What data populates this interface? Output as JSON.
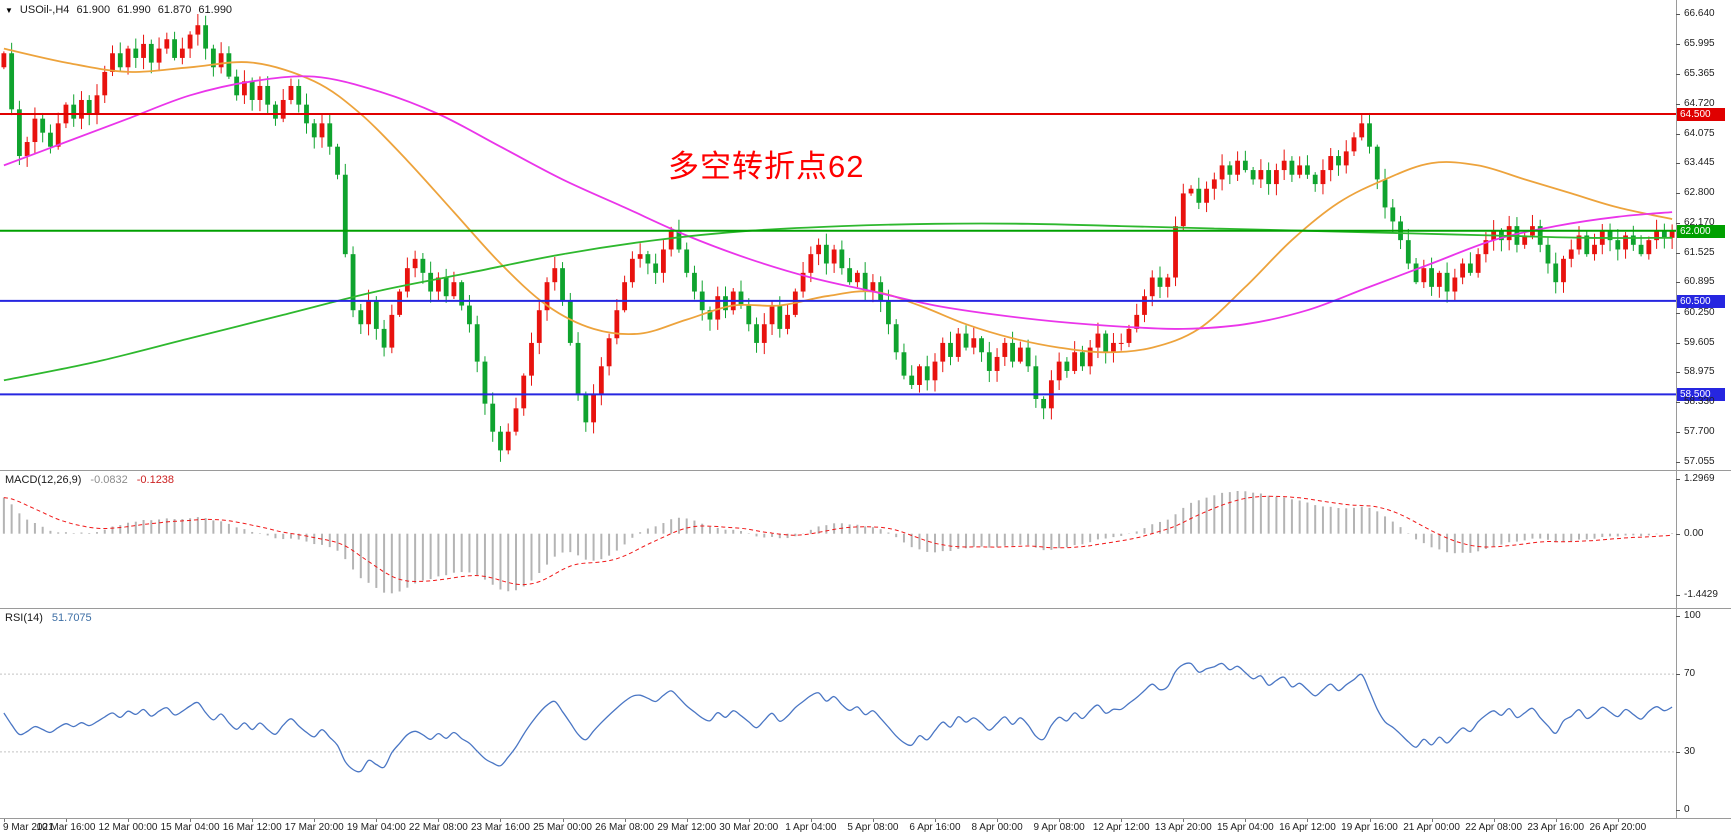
{
  "header": {
    "collapse_icon": "▼",
    "symbol_period": "USOil-,H4",
    "open": "61.900",
    "high": "61.990",
    "low": "61.870",
    "close": "61.990"
  },
  "annotation": {
    "text": "多空转折点62",
    "color": "#ff0000"
  },
  "macd_label": {
    "name": "MACD(12,26,9)",
    "value": "-0.0832",
    "signal": "-0.1238"
  },
  "rsi_label": {
    "name": "RSI(14)",
    "value": "51.7075"
  },
  "price_axis": {
    "ticks": [
      "66.640",
      "65.995",
      "65.365",
      "64.720",
      "64.075",
      "63.445",
      "62.800",
      "62.170",
      "61.525",
      "60.895",
      "60.250",
      "59.605",
      "58.975",
      "58.330",
      "57.700",
      "57.055"
    ]
  },
  "macd_axis": [
    "1.2969",
    "0.00",
    "-1.4429"
  ],
  "rsi_axis": [
    "100",
    "70",
    "30",
    "0"
  ],
  "time_axis": {
    "labels": [
      "9 Mar 2021",
      "10 Mar 16:00",
      "12 Mar 00:00",
      "15 Mar 04:00",
      "16 Mar 12:00",
      "17 Mar 20:00",
      "19 Mar 04:00",
      "22 Mar 08:00",
      "23 Mar 16:00",
      "25 Mar 00:00",
      "26 Mar 08:00",
      "29 Mar 12:00",
      "30 Mar 20:00",
      "1 Apr 04:00",
      "5 Apr 08:00",
      "6 Apr 16:00",
      "8 Apr 00:00",
      "9 Apr 08:00",
      "12 Apr 12:00",
      "13 Apr 20:00",
      "15 Apr 04:00",
      "16 Apr 12:00",
      "19 Apr 16:00",
      "21 Apr 00:00",
      "22 Apr 08:00",
      "23 Apr 16:00",
      "26 Apr 20:00"
    ],
    "bars_per_label": 8
  },
  "chart_data": {
    "type": "candlestick",
    "symbol": "USOil-",
    "timeframe": "H4",
    "price_range": {
      "min": 56.88,
      "max": 66.94
    },
    "first_open": 65.5,
    "closes": [
      65.8,
      64.6,
      63.6,
      63.9,
      64.4,
      64.1,
      63.8,
      64.3,
      64.7,
      64.4,
      64.8,
      64.5,
      64.9,
      65.4,
      65.8,
      65.5,
      65.9,
      65.7,
      66.0,
      65.6,
      65.9,
      66.1,
      65.7,
      65.9,
      66.2,
      66.4,
      65.9,
      65.5,
      65.8,
      65.3,
      64.9,
      65.2,
      64.8,
      65.1,
      64.7,
      64.4,
      64.8,
      65.1,
      64.7,
      64.3,
      64.0,
      64.3,
      63.8,
      63.2,
      61.5,
      60.3,
      60.0,
      60.5,
      59.9,
      59.5,
      60.2,
      60.7,
      61.2,
      61.4,
      61.1,
      60.7,
      61.0,
      60.6,
      60.9,
      60.4,
      60.0,
      59.2,
      58.3,
      57.7,
      57.3,
      57.7,
      58.2,
      58.9,
      59.6,
      60.3,
      60.9,
      61.2,
      60.5,
      59.6,
      58.5,
      57.9,
      58.5,
      59.1,
      59.7,
      60.3,
      60.9,
      61.4,
      61.5,
      61.3,
      61.1,
      61.6,
      62.0,
      61.6,
      61.1,
      60.7,
      60.3,
      60.1,
      60.6,
      60.3,
      60.7,
      60.4,
      60.0,
      59.6,
      60.0,
      60.4,
      59.9,
      60.2,
      60.7,
      61.1,
      61.5,
      61.7,
      61.3,
      61.6,
      61.2,
      60.9,
      61.1,
      60.7,
      60.9,
      60.5,
      60.0,
      59.4,
      58.9,
      58.7,
      59.1,
      58.8,
      59.2,
      59.6,
      59.3,
      59.8,
      59.5,
      59.7,
      59.4,
      59.0,
      59.3,
      59.6,
      59.2,
      59.5,
      59.1,
      58.4,
      58.2,
      58.8,
      59.2,
      59.0,
      59.4,
      59.1,
      59.5,
      59.8,
      59.4,
      59.6,
      59.6,
      59.9,
      60.2,
      60.6,
      61.0,
      60.8,
      61.0,
      62.1,
      62.8,
      62.9,
      62.6,
      62.9,
      63.1,
      63.4,
      63.2,
      63.5,
      63.3,
      63.1,
      63.3,
      63.0,
      63.3,
      63.5,
      63.2,
      63.4,
      63.2,
      63.0,
      63.3,
      63.6,
      63.4,
      63.7,
      64.0,
      64.3,
      63.8,
      63.1,
      62.5,
      62.2,
      61.8,
      61.3,
      60.9,
      61.2,
      60.8,
      61.1,
      60.7,
      61.0,
      61.3,
      61.1,
      61.5,
      61.8,
      62.0,
      61.8,
      62.1,
      61.7,
      61.9,
      62.1,
      61.7,
      61.3,
      60.9,
      61.4,
      61.6,
      61.9,
      61.5,
      61.7,
      62.0,
      61.8,
      61.6,
      61.9,
      61.7,
      61.5,
      61.8,
      62.0,
      61.85,
      61.99
    ],
    "extremes": {
      "high_index": 25,
      "high": 66.64,
      "low_index": 64,
      "low": 57.055
    },
    "colors": {
      "up": "#e8120e",
      "down": "#0fa32e",
      "macd_hist": "#b4b4b4",
      "macd_signal": "#f01818",
      "rsi": "#4a76c4",
      "rsi_level": "#c4c4c4"
    },
    "h_lines": [
      {
        "label": "64.500",
        "price": 64.5,
        "color": "#e00000"
      },
      {
        "label": "62.000",
        "price": 62.0,
        "color": "#00a000"
      },
      {
        "label": "60.500",
        "price": 60.5,
        "color": "#2626e0"
      },
      {
        "label": "58.500",
        "price": 58.5,
        "color": "#2626e0"
      }
    ],
    "moving_averages": [
      {
        "name": "ma-orange",
        "color": "#eda33c",
        "points": [
          [
            0,
            65.9
          ],
          [
            8,
            65.6
          ],
          [
            16,
            65.4
          ],
          [
            24,
            65.5
          ],
          [
            32,
            65.6
          ],
          [
            40,
            65.2
          ],
          [
            46,
            64.5
          ],
          [
            52,
            63.5
          ],
          [
            58,
            62.4
          ],
          [
            64,
            61.3
          ],
          [
            70,
            60.4
          ],
          [
            76,
            59.9
          ],
          [
            82,
            59.8
          ],
          [
            88,
            60.1
          ],
          [
            94,
            60.4
          ],
          [
            100,
            60.4
          ],
          [
            106,
            60.6
          ],
          [
            112,
            60.7
          ],
          [
            118,
            60.4
          ],
          [
            124,
            60.0
          ],
          [
            130,
            59.7
          ],
          [
            136,
            59.5
          ],
          [
            142,
            59.4
          ],
          [
            148,
            59.5
          ],
          [
            154,
            59.9
          ],
          [
            160,
            60.8
          ],
          [
            166,
            61.8
          ],
          [
            172,
            62.6
          ],
          [
            178,
            63.1
          ],
          [
            184,
            63.45
          ],
          [
            190,
            63.4
          ],
          [
            196,
            63.1
          ],
          [
            202,
            62.8
          ],
          [
            208,
            62.5
          ],
          [
            215,
            62.25
          ]
        ]
      },
      {
        "name": "ma-magenta",
        "color": "#ea35ea",
        "points": [
          [
            0,
            63.4
          ],
          [
            8,
            63.9
          ],
          [
            16,
            64.4
          ],
          [
            24,
            64.9
          ],
          [
            32,
            65.2
          ],
          [
            40,
            65.3
          ],
          [
            48,
            65.0
          ],
          [
            56,
            64.5
          ],
          [
            64,
            63.8
          ],
          [
            72,
            63.1
          ],
          [
            80,
            62.5
          ],
          [
            88,
            61.9
          ],
          [
            96,
            61.4
          ],
          [
            104,
            61.0
          ],
          [
            112,
            60.7
          ],
          [
            120,
            60.4
          ],
          [
            128,
            60.2
          ],
          [
            136,
            60.05
          ],
          [
            144,
            59.95
          ],
          [
            152,
            59.9
          ],
          [
            160,
            60.0
          ],
          [
            168,
            60.3
          ],
          [
            176,
            60.8
          ],
          [
            184,
            61.3
          ],
          [
            192,
            61.8
          ],
          [
            200,
            62.1
          ],
          [
            208,
            62.3
          ],
          [
            215,
            62.4
          ]
        ]
      },
      {
        "name": "ma-green",
        "color": "#2eb82e",
        "points": [
          [
            0,
            58.8
          ],
          [
            12,
            59.2
          ],
          [
            24,
            59.7
          ],
          [
            36,
            60.2
          ],
          [
            48,
            60.7
          ],
          [
            60,
            61.1
          ],
          [
            72,
            61.5
          ],
          [
            84,
            61.8
          ],
          [
            96,
            62.0
          ],
          [
            108,
            62.1
          ],
          [
            120,
            62.15
          ],
          [
            132,
            62.15
          ],
          [
            144,
            62.1
          ],
          [
            156,
            62.05
          ],
          [
            168,
            62.0
          ],
          [
            180,
            61.95
          ],
          [
            192,
            61.9
          ],
          [
            204,
            61.85
          ],
          [
            215,
            61.85
          ]
        ]
      }
    ],
    "macd": {
      "fast": 12,
      "slow": 26,
      "signal": 9,
      "seed_offset": 0.85,
      "range": {
        "min": -1.75,
        "max": 1.5
      },
      "shown_extremes": [
        1.2969,
        -1.4429
      ]
    },
    "rsi": {
      "period": 14,
      "range": {
        "min": -4,
        "max": 104
      },
      "levels": [
        70,
        30
      ]
    }
  }
}
